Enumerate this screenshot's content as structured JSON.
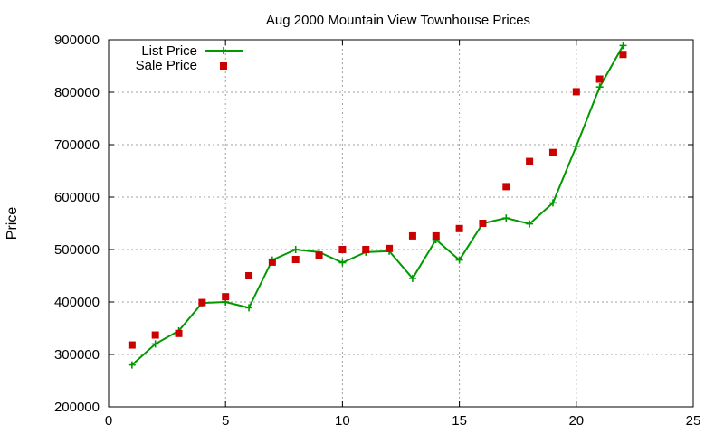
{
  "chart_data": {
    "type": "line",
    "title": "Aug 2000 Mountain View Townhouse Prices",
    "xlabel": "",
    "ylabel": "Price",
    "xlim": [
      0,
      25
    ],
    "ylim": [
      200000,
      900000
    ],
    "xticks": [
      0,
      5,
      10,
      15,
      20,
      25
    ],
    "yticks": [
      200000,
      300000,
      400000,
      500000,
      600000,
      700000,
      800000,
      900000
    ],
    "xtick_labels": [
      "0",
      "5",
      "10",
      "15",
      "20",
      "25"
    ],
    "ytick_labels": [
      "200000",
      "300000",
      "400000",
      "500000",
      "600000",
      "700000",
      "800000",
      "900000"
    ],
    "grid": true,
    "legend_position": "top-left",
    "series": [
      {
        "name": "List Price",
        "style": "line-plus",
        "color": "#009900",
        "x": [
          1,
          2,
          3,
          4,
          5,
          6,
          7,
          8,
          9,
          10,
          11,
          12,
          13,
          14,
          15,
          16,
          17,
          18,
          19,
          20,
          21,
          22
        ],
        "y": [
          280000,
          320000,
          345000,
          398000,
          400000,
          389000,
          480000,
          500000,
          495000,
          475000,
          495000,
          497000,
          445000,
          519000,
          480000,
          550000,
          560000,
          549000,
          589000,
          697000,
          810000,
          889000
        ]
      },
      {
        "name": "Sale Price",
        "style": "square",
        "color": "#cc0000",
        "x": [
          1,
          2,
          3,
          4,
          5,
          6,
          7,
          8,
          9,
          10,
          11,
          12,
          13,
          14,
          15,
          16,
          17,
          18,
          19,
          20,
          21,
          22
        ],
        "y": [
          318000,
          337000,
          340000,
          399000,
          410000,
          450000,
          476000,
          481000,
          489000,
          500000,
          500000,
          502000,
          526000,
          526000,
          540000,
          550000,
          620000,
          668000,
          685000,
          801000,
          825000,
          872000
        ]
      }
    ]
  }
}
